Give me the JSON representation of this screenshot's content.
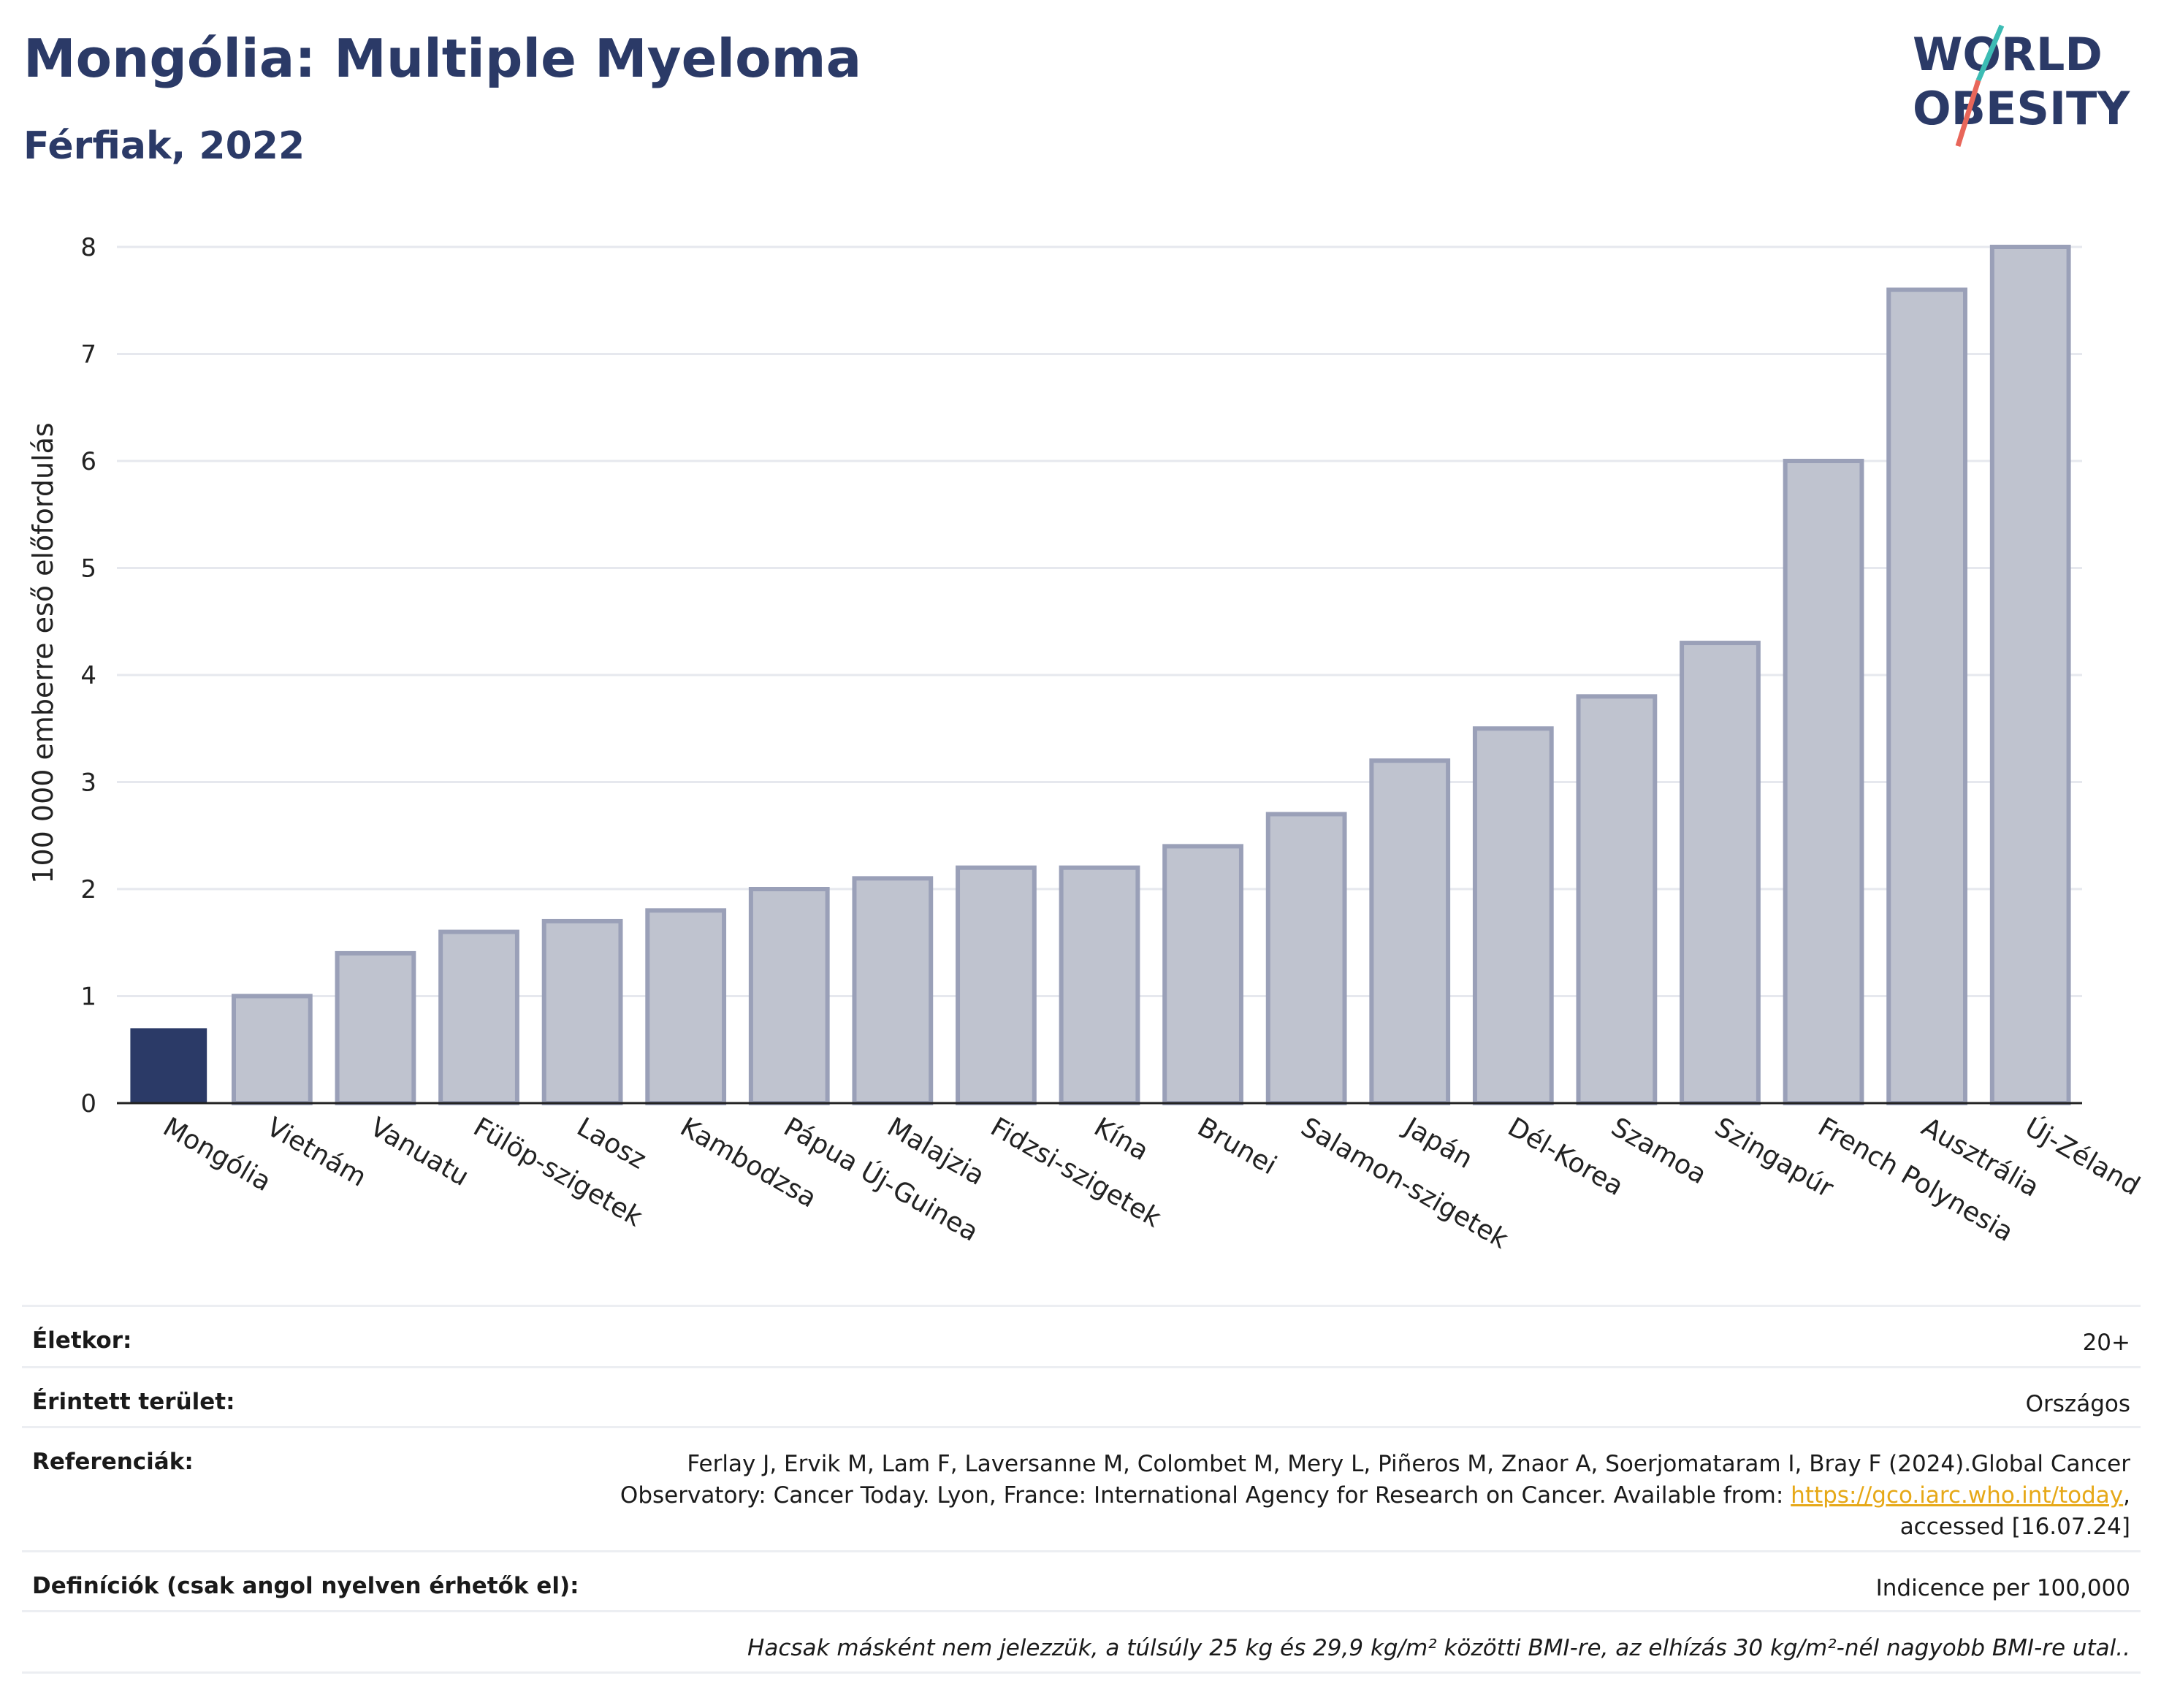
{
  "header": {
    "title": "Mongólia: Multiple Myeloma",
    "subtitle": "Férfiak, 2022",
    "logo_line1": "WORLD",
    "logo_line2": "OBESITY"
  },
  "colors": {
    "highlight": "#2b3a67",
    "bar_fill": "#bfc3cf",
    "bar_stroke": "#9aa0b8",
    "title": "#2b3a67"
  },
  "chart_data": {
    "type": "bar",
    "categories": [
      "Mongólia",
      "Vietnám",
      "Vanuatu",
      "Fülöp-szigetek",
      "Laosz",
      "Kambodzsa",
      "Pápua Új-Guinea",
      "Malajzia",
      "Fidzsi-szigetek",
      "Kína",
      "Brunei",
      "Salamon-szigetek",
      "Japán",
      "Dél-Korea",
      "Szamoa",
      "Szingapúr",
      "French Polynesia",
      "Ausztrália",
      "Új-Zéland"
    ],
    "values": [
      0.7,
      1.0,
      1.4,
      1.6,
      1.7,
      1.8,
      2.0,
      2.1,
      2.2,
      2.2,
      2.4,
      2.7,
      3.2,
      3.5,
      3.8,
      4.3,
      6.0,
      7.6,
      8.0
    ],
    "highlight_index": 0,
    "ylabel": "100 000 emberre eső előfordulás",
    "xlabel": "",
    "ylim": [
      0,
      8
    ],
    "yticks": [
      0,
      1,
      2,
      3,
      4,
      5,
      6,
      7,
      8
    ],
    "grid": true
  },
  "info": {
    "age_label": "Életkor:",
    "age_value": "20+",
    "area_label": "Érintett terület:",
    "area_value": "Országos",
    "ref_label": "Referenciák:",
    "ref_text_1": "Ferlay J, Ervik M, Lam F, Laversanne M, Colombet M, Mery L, Piñeros M, Znaor A, Soerjomataram I, Bray F (2024).Global Cancer",
    "ref_text_2": "Observatory: Cancer Today. Lyon, France: International Agency for Research on Cancer. Available from:",
    "ref_link": "https://gco.iarc.who.int/today",
    "ref_text_3": ",",
    "ref_text_4": "accessed [16.07.24]",
    "def_label": "Definíciók (csak angol nyelven érhetők el):",
    "def_value": "Indicence per 100,000",
    "note": "Hacsak másként nem jelezzük, a túlsúly 25 kg és 29,9 kg/m² közötti BMI-re, az elhízás 30 kg/m²-nél nagyobb BMI-re utal.."
  }
}
